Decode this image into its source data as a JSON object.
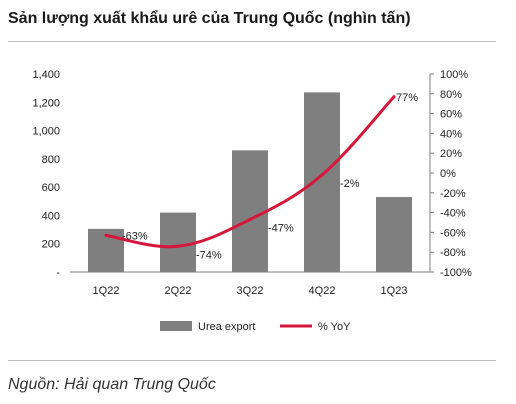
{
  "title": "Sản lượng xuất khẩu urê của Trung Quốc (nghìn tấn)",
  "source": "Nguồn: Hải quan Trung Quốc",
  "colors": {
    "bar": "#7f7f7f",
    "line": "#d6173c",
    "axis": "#7f7f7f",
    "rule": "#bfbfbf"
  },
  "chart_data": {
    "type": "bar",
    "categories": [
      "1Q22",
      "2Q22",
      "3Q22",
      "4Q22",
      "1Q23"
    ],
    "series": [
      {
        "name": "Urea export",
        "type": "bar",
        "axis": "left",
        "values": [
          305,
          420,
          860,
          1270,
          530
        ]
      },
      {
        "name": "% YoY",
        "type": "line",
        "axis": "right",
        "values": [
          -63,
          -74,
          -47,
          -2,
          77
        ],
        "labels": [
          "-63%",
          "-74%",
          "-47%",
          "-2%",
          "77%"
        ]
      }
    ],
    "y_left": {
      "ylim": [
        0,
        1400
      ],
      "ticks": [
        0,
        200,
        400,
        600,
        800,
        1000,
        1200,
        1400
      ],
      "tick_labels": [
        "-",
        "200",
        "400",
        "600",
        "800",
        "1,000",
        "1,200",
        "1,400"
      ]
    },
    "y_right": {
      "ylim": [
        -100,
        100
      ],
      "ticks": [
        -100,
        -80,
        -60,
        -40,
        -20,
        0,
        20,
        40,
        60,
        80,
        100
      ],
      "tick_labels": [
        "-100%",
        "-80%",
        "-60%",
        "-40%",
        "-20%",
        "0%",
        "20%",
        "40%",
        "60%",
        "80%",
        "100%"
      ]
    },
    "grid": false,
    "legend_position": "bottom"
  }
}
